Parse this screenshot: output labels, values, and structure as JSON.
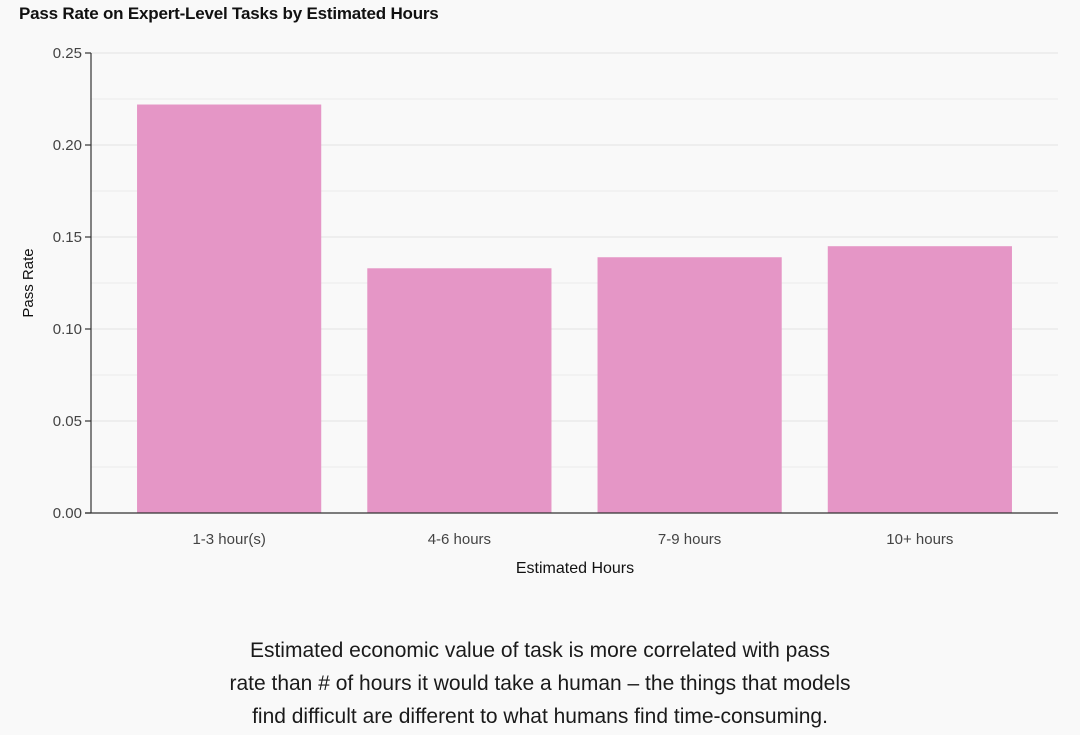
{
  "chart_data": {
    "type": "bar",
    "title": "Pass Rate on Expert-Level Tasks by Estimated Hours",
    "xlabel": "Estimated Hours",
    "ylabel": "Pass Rate",
    "categories": [
      "1-3 hour(s)",
      "4-6 hours",
      "7-9 hours",
      "10+ hours"
    ],
    "values": [
      0.222,
      0.133,
      0.139,
      0.145
    ],
    "ylim": [
      0,
      0.25
    ],
    "yticks": [
      "0.00",
      "0.05",
      "0.10",
      "0.15",
      "0.20",
      "0.25"
    ],
    "grid": true,
    "bar_color": "#e596c6"
  },
  "caption": {
    "lines": [
      "Estimated economic value of task is more correlated with pass",
      "rate than # of hours it would take a human – the things that models",
      "find difficult are different to what humans find time-consuming."
    ]
  }
}
